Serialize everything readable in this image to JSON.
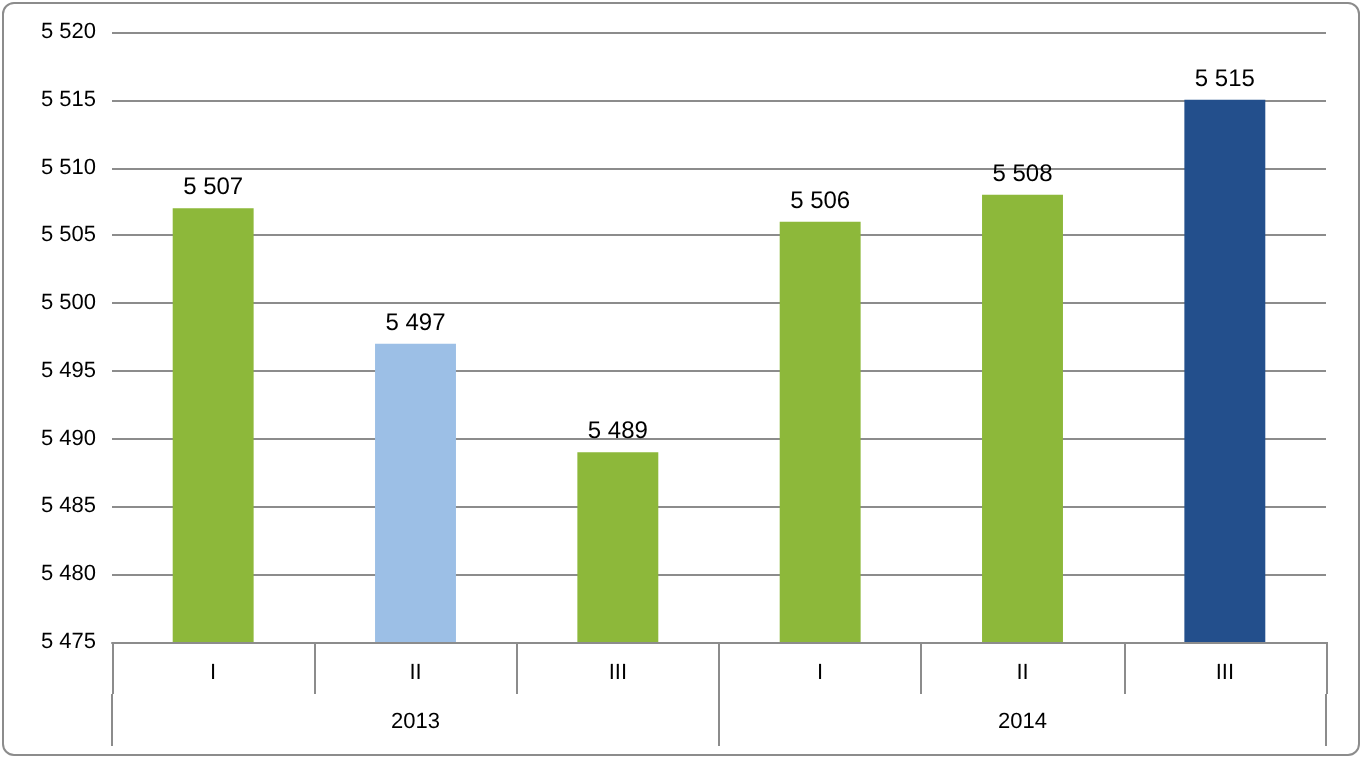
{
  "chart_data": {
    "type": "bar",
    "categories": [
      "I",
      "II",
      "III",
      "I",
      "II",
      "III"
    ],
    "values": [
      5507,
      5497,
      5489,
      5506,
      5508,
      5515
    ],
    "colors": [
      "#8db83a",
      "#9cbfe6",
      "#8db83a",
      "#8db83a",
      "#8db83a",
      "#234f8c"
    ],
    "value_labels": [
      "5 507",
      "5 497",
      "5 489",
      "5 506",
      "5 508",
      "5 515"
    ],
    "ylim": [
      5475,
      5520
    ],
    "yticks": [
      {
        "value": 5475,
        "label": "5 475"
      },
      {
        "value": 5480,
        "label": "5 480"
      },
      {
        "value": 5485,
        "label": "5 485"
      },
      {
        "value": 5490,
        "label": "5 490"
      },
      {
        "value": 5495,
        "label": "5 495"
      },
      {
        "value": 5500,
        "label": "5 500"
      },
      {
        "value": 5505,
        "label": "5 505"
      },
      {
        "value": 5510,
        "label": "5 510"
      },
      {
        "value": 5515,
        "label": "5 515"
      },
      {
        "value": 5520,
        "label": "5 520"
      }
    ],
    "annotations": [
      "2013",
      "2014"
    ],
    "grid": "y"
  }
}
